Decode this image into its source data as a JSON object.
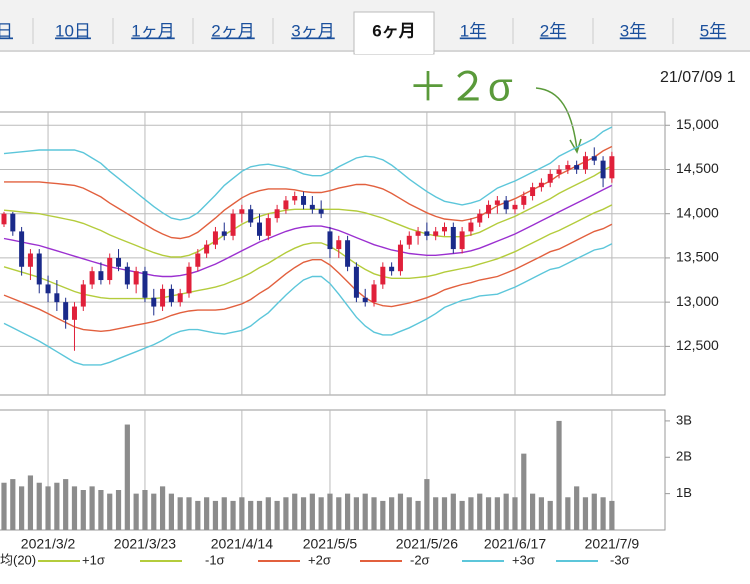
{
  "tabs": [
    "日",
    "10日",
    "1ヶ月",
    "2ヶ月",
    "3ヶ月",
    "6ヶ月",
    "1年",
    "2年",
    "3年",
    "5年"
  ],
  "annotation": "＋２σ",
  "timestamp": "21/07/09 1",
  "chart_data": [
    {
      "type": "candlestick",
      "ylim": [
        11950,
        15150
      ],
      "yticks": [
        {
          "value": 12500,
          "label": "12,500"
        },
        {
          "value": 13000,
          "label": "13,000"
        },
        {
          "value": 13500,
          "label": "13,500"
        },
        {
          "value": 14000,
          "label": "14,000"
        },
        {
          "value": 14500,
          "label": "14,500"
        },
        {
          "value": 15000,
          "label": "15,000"
        }
      ],
      "grid": true,
      "up_color": "#e0203a",
      "down_color": "#1a2a8a",
      "open": [
        13880,
        14000,
        13800,
        13400,
        13550,
        13200,
        13100,
        13000,
        12800,
        12950,
        13200,
        13350,
        13250,
        13500,
        13400,
        13200,
        13350,
        13050,
        12950,
        13150,
        13000,
        13100,
        13400,
        13550,
        13650,
        13800,
        13750,
        14000,
        14050,
        13900,
        13750,
        13950,
        14050,
        14150,
        14200,
        14100,
        14050,
        13800,
        13600,
        13700,
        13400,
        13050,
        13000,
        13200,
        13400,
        13350,
        13650,
        13750,
        13800,
        13750,
        13800,
        13850,
        13600,
        13800,
        13900,
        14000,
        14100,
        14150,
        14050,
        14100,
        14200,
        14300,
        14350,
        14450,
        14500,
        14550,
        14500,
        14650,
        14600,
        14400
      ],
      "high": [
        14020,
        14020,
        13850,
        13600,
        13600,
        13300,
        13250,
        13050,
        13000,
        13250,
        13400,
        13450,
        13550,
        13600,
        13450,
        13400,
        13400,
        13150,
        13200,
        13200,
        13150,
        13450,
        13600,
        13700,
        13850,
        13900,
        14050,
        14100,
        14100,
        14000,
        14000,
        14100,
        14200,
        14250,
        14250,
        14200,
        14150,
        13850,
        13750,
        13750,
        13450,
        13150,
        13250,
        13450,
        13450,
        13700,
        13800,
        13850,
        13900,
        13850,
        13900,
        13900,
        13850,
        13950,
        14050,
        14150,
        14200,
        14200,
        14150,
        14250,
        14350,
        14400,
        14500,
        14550,
        14600,
        14600,
        14700,
        14750,
        14650,
        14700
      ],
      "low": [
        13850,
        13750,
        13300,
        13250,
        13100,
        13000,
        12900,
        12700,
        12450,
        12900,
        13150,
        13200,
        13200,
        13350,
        13150,
        13100,
        13000,
        12850,
        12900,
        12950,
        12950,
        13050,
        13350,
        13500,
        13600,
        13700,
        13700,
        13900,
        13850,
        13700,
        13700,
        13900,
        14000,
        14100,
        14050,
        14000,
        13950,
        13500,
        13500,
        13350,
        13000,
        12950,
        12950,
        13150,
        13300,
        13300,
        13600,
        13650,
        13700,
        13700,
        13750,
        13550,
        13550,
        13750,
        13850,
        13950,
        14000,
        14000,
        14000,
        14050,
        14150,
        14250,
        14300,
        14400,
        14450,
        14450,
        14450,
        14550,
        14300,
        14350
      ],
      "close": [
        14000,
        13800,
        13400,
        13550,
        13200,
        13100,
        13000,
        12800,
        12950,
        13200,
        13350,
        13250,
        13500,
        13400,
        13200,
        13350,
        13050,
        12950,
        13150,
        13000,
        13100,
        13400,
        13550,
        13650,
        13800,
        13750,
        14000,
        14050,
        13900,
        13750,
        13950,
        14050,
        14150,
        14200,
        14100,
        14050,
        14000,
        13600,
        13700,
        13400,
        13050,
        13000,
        13200,
        13400,
        13350,
        13650,
        13750,
        13800,
        13750,
        13800,
        13850,
        13600,
        13800,
        13900,
        14000,
        14100,
        14150,
        14050,
        14100,
        14200,
        14300,
        14350,
        14450,
        14500,
        14550,
        14500,
        14650,
        14600,
        14400,
        14650
      ],
      "series": [
        {
          "name": "均(20)",
          "color": "#9b30d0",
          "values": [
            13720,
            13700,
            13680,
            13660,
            13640,
            13610,
            13580,
            13550,
            13520,
            13490,
            13460,
            13430,
            13400,
            13380,
            13360,
            13340,
            13320,
            13300,
            13290,
            13290,
            13300,
            13320,
            13350,
            13390,
            13430,
            13480,
            13530,
            13580,
            13630,
            13680,
            13720,
            13760,
            13800,
            13830,
            13850,
            13860,
            13860,
            13840,
            13810,
            13770,
            13730,
            13690,
            13650,
            13620,
            13590,
            13570,
            13550,
            13540,
            13530,
            13530,
            13540,
            13550,
            13560,
            13580,
            13610,
            13650,
            13690,
            13730,
            13770,
            13820,
            13870,
            13920,
            13970,
            14020,
            14070,
            14120,
            14170,
            14220,
            14270,
            14320
          ]
        },
        {
          "name": "+1σ",
          "color": "#b4cc3c",
          "values": [
            14040,
            14030,
            14020,
            14010,
            14000,
            13980,
            13960,
            13940,
            13920,
            13890,
            13850,
            13810,
            13760,
            13720,
            13680,
            13640,
            13600,
            13560,
            13530,
            13510,
            13510,
            13530,
            13570,
            13630,
            13690,
            13760,
            13820,
            13880,
            13930,
            13970,
            14000,
            14020,
            14040,
            14050,
            14050,
            14050,
            14050,
            14050,
            14050,
            14040,
            14030,
            14010,
            13980,
            13950,
            13910,
            13870,
            13830,
            13800,
            13770,
            13750,
            13740,
            13740,
            13740,
            13760,
            13790,
            13840,
            13890,
            13930,
            13970,
            14020,
            14070,
            14120,
            14170,
            14230,
            14280,
            14330,
            14380,
            14430,
            14490,
            14540
          ]
        },
        {
          "name": "-1σ",
          "color": "#b4cc3c",
          "values": [
            13400,
            13370,
            13340,
            13310,
            13280,
            13240,
            13200,
            13160,
            13120,
            13090,
            13070,
            13050,
            13040,
            13040,
            13040,
            13040,
            13040,
            13040,
            13050,
            13070,
            13090,
            13110,
            13130,
            13150,
            13170,
            13200,
            13240,
            13280,
            13330,
            13390,
            13440,
            13500,
            13560,
            13610,
            13650,
            13670,
            13670,
            13630,
            13570,
            13500,
            13430,
            13370,
            13320,
            13290,
            13270,
            13270,
            13270,
            13280,
            13290,
            13310,
            13340,
            13360,
            13380,
            13400,
            13430,
            13460,
            13490,
            13530,
            13570,
            13620,
            13670,
            13720,
            13770,
            13810,
            13860,
            13910,
            13960,
            14010,
            14050,
            14100
          ]
        },
        {
          "name": "+2σ",
          "color": "#e2603e",
          "values": [
            14360,
            14360,
            14360,
            14360,
            14360,
            14350,
            14340,
            14330,
            14320,
            14290,
            14240,
            14190,
            14120,
            14060,
            14000,
            13940,
            13880,
            13820,
            13770,
            13730,
            13720,
            13740,
            13790,
            13870,
            13950,
            14040,
            14110,
            14180,
            14230,
            14260,
            14280,
            14280,
            14280,
            14270,
            14250,
            14240,
            14240,
            14260,
            14290,
            14310,
            14330,
            14330,
            14310,
            14280,
            14230,
            14170,
            14110,
            14060,
            14010,
            13970,
            13940,
            13930,
            13920,
            13940,
            13970,
            14030,
            14090,
            14130,
            14170,
            14220,
            14270,
            14320,
            14370,
            14440,
            14490,
            14540,
            14590,
            14640,
            14710,
            14760
          ]
        },
        {
          "name": "-2σ",
          "color": "#e2603e",
          "values": [
            13080,
            13040,
            13000,
            12960,
            12920,
            12870,
            12820,
            12770,
            12720,
            12690,
            12680,
            12670,
            12680,
            12700,
            12720,
            12740,
            12760,
            12780,
            12810,
            12850,
            12880,
            12900,
            12910,
            12910,
            12910,
            12920,
            12950,
            12980,
            13030,
            13100,
            13160,
            13240,
            13320,
            13390,
            13450,
            13480,
            13480,
            13420,
            13330,
            13230,
            13130,
            13050,
            12990,
            12960,
            12950,
            12970,
            12990,
            13020,
            13050,
            13090,
            13140,
            13170,
            13200,
            13220,
            13250,
            13270,
            13290,
            13330,
            13370,
            13420,
            13470,
            13520,
            13570,
            13600,
            13650,
            13700,
            13750,
            13800,
            13830,
            13880
          ]
        },
        {
          "name": "+3σ",
          "color": "#5cc6da",
          "values": [
            14680,
            14690,
            14700,
            14710,
            14720,
            14720,
            14720,
            14720,
            14720,
            14690,
            14630,
            14570,
            14480,
            14400,
            14320,
            14240,
            14160,
            14080,
            14010,
            13950,
            13930,
            13950,
            14010,
            14110,
            14210,
            14320,
            14400,
            14480,
            14530,
            14550,
            14560,
            14540,
            14520,
            14490,
            14450,
            14430,
            14430,
            14470,
            14530,
            14580,
            14630,
            14650,
            14640,
            14610,
            14550,
            14470,
            14390,
            14320,
            14250,
            14190,
            14140,
            14120,
            14100,
            14120,
            14150,
            14220,
            14290,
            14330,
            14370,
            14420,
            14470,
            14520,
            14570,
            14650,
            14700,
            14750,
            14800,
            14850,
            14930,
            14980
          ]
        },
        {
          "name": "-3σ",
          "color": "#5cc6da",
          "values": [
            12760,
            12710,
            12660,
            12610,
            12560,
            12500,
            12440,
            12380,
            12320,
            12290,
            12290,
            12290,
            12320,
            12360,
            12400,
            12440,
            12480,
            12520,
            12570,
            12630,
            12670,
            12690,
            12690,
            12670,
            12650,
            12640,
            12660,
            12680,
            12730,
            12810,
            12880,
            12980,
            13080,
            13170,
            13250,
            13290,
            13290,
            13210,
            13090,
            12960,
            12830,
            12730,
            12660,
            12630,
            12630,
            12670,
            12710,
            12760,
            12810,
            12870,
            12940,
            12980,
            13020,
            13040,
            13070,
            13080,
            13090,
            13130,
            13170,
            13220,
            13270,
            13320,
            13370,
            13390,
            13440,
            13490,
            13540,
            13590,
            13610,
            13660
          ]
        }
      ]
    },
    {
      "type": "bar",
      "color": "#8c8c8c",
      "ylim": [
        0,
        3.3
      ],
      "yticks": [
        {
          "value": 1,
          "label": "1B"
        },
        {
          "value": 2,
          "label": "2B"
        },
        {
          "value": 3,
          "label": "3B"
        }
      ],
      "categories": [
        null,
        null,
        null,
        null,
        null,
        "2021/3/2",
        null,
        null,
        null,
        null,
        null,
        null,
        null,
        null,
        null,
        null,
        "2021/3/23",
        null,
        null,
        null,
        null,
        null,
        null,
        null,
        null,
        null,
        null,
        "2021/4/14",
        null,
        null,
        null,
        null,
        null,
        null,
        null,
        null,
        null,
        "2021/5/5",
        null,
        null,
        null,
        null,
        null,
        null,
        null,
        null,
        null,
        null,
        "2021/5/26",
        null,
        null,
        null,
        null,
        null,
        null,
        null,
        null,
        null,
        "2021/6/17",
        null,
        null,
        null,
        null,
        null,
        null,
        null,
        null,
        null,
        null,
        "2021/7/9"
      ],
      "values": [
        1.3,
        1.4,
        1.2,
        1.5,
        1.3,
        1.2,
        1.3,
        1.4,
        1.2,
        1.1,
        1.2,
        1.1,
        1.0,
        1.1,
        2.9,
        1.0,
        1.1,
        1.0,
        1.2,
        1.0,
        0.9,
        0.9,
        0.8,
        0.9,
        0.8,
        0.9,
        0.8,
        0.9,
        0.8,
        0.8,
        0.9,
        0.8,
        0.9,
        1.0,
        0.9,
        1.0,
        0.9,
        1.0,
        0.9,
        1.0,
        0.9,
        1.0,
        0.9,
        0.8,
        0.9,
        1.0,
        0.9,
        0.8,
        1.4,
        0.9,
        0.9,
        1.0,
        0.8,
        0.9,
        1.0,
        0.9,
        0.9,
        1.0,
        0.9,
        2.1,
        1.0,
        0.9,
        0.8,
        3.0,
        0.9,
        1.2,
        0.9,
        1.0,
        0.9,
        0.8
      ]
    }
  ]
}
